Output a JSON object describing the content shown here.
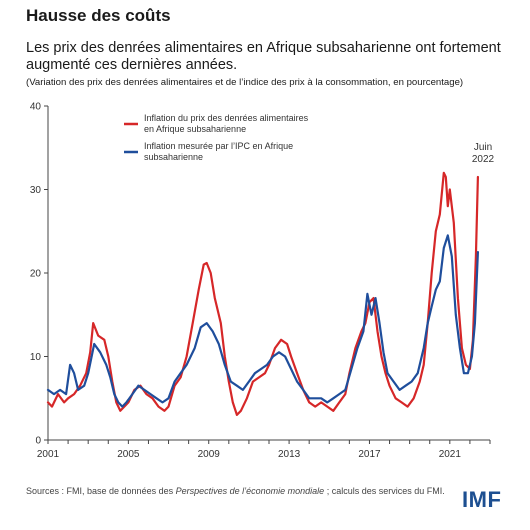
{
  "header": {
    "title": "Hausse des coûts",
    "subtitle": "Les prix des denrées alimentaires en Afrique subsaharienne ont fortement augmenté ces dernières années.",
    "note": "(Variation des prix des denrées alimentaires et de l’indice des prix à la consommation, en pourcentage)"
  },
  "footer": {
    "source_prefix": "Sources : FMI, base de données des ",
    "source_italic": "Perspectives de l’économie mondiale",
    "source_suffix": " ; calculs des services du FMI.",
    "logo": "IMF"
  },
  "colors": {
    "food": "#d62728",
    "cpi": "#1f4e9c",
    "axis": "#444444"
  },
  "chart_data": {
    "type": "line",
    "x_range": [
      2001,
      2023
    ],
    "ylim": [
      0,
      40
    ],
    "y_ticks": [
      "0",
      "10",
      "20",
      "30",
      "40"
    ],
    "x_ticks": [
      "2001",
      "2005",
      "2009",
      "2013",
      "2017",
      "2021"
    ],
    "legend_position": "top-center",
    "annotation": [
      "Juin",
      "2022"
    ],
    "series": [
      {
        "name": "Inflation du prix des denrées alimentaires en Afrique subsaharienne",
        "legend_lines": [
          "Inflation du prix des denrées alimentaires",
          "en Afrique subsaharienne"
        ],
        "color": "#d62728",
        "points": [
          [
            2001.0,
            4.5
          ],
          [
            2001.2,
            4.0
          ],
          [
            2001.5,
            5.5
          ],
          [
            2001.8,
            4.5
          ],
          [
            2002.0,
            5.0
          ],
          [
            2002.3,
            5.5
          ],
          [
            2002.6,
            6.5
          ],
          [
            2002.9,
            8.0
          ],
          [
            2003.1,
            10.5
          ],
          [
            2003.25,
            14.0
          ],
          [
            2003.5,
            12.5
          ],
          [
            2003.8,
            12.0
          ],
          [
            2004.0,
            10.0
          ],
          [
            2004.2,
            7.0
          ],
          [
            2004.4,
            4.5
          ],
          [
            2004.6,
            3.5
          ],
          [
            2004.8,
            4.0
          ],
          [
            2005.0,
            4.5
          ],
          [
            2005.3,
            6.0
          ],
          [
            2005.6,
            6.5
          ],
          [
            2005.9,
            5.5
          ],
          [
            2006.2,
            5.0
          ],
          [
            2006.5,
            4.0
          ],
          [
            2006.8,
            3.5
          ],
          [
            2007.0,
            4.0
          ],
          [
            2007.3,
            6.5
          ],
          [
            2007.6,
            7.5
          ],
          [
            2007.9,
            10.0
          ],
          [
            2008.2,
            14.0
          ],
          [
            2008.5,
            18.0
          ],
          [
            2008.75,
            21.0
          ],
          [
            2008.9,
            21.2
          ],
          [
            2009.1,
            20.0
          ],
          [
            2009.3,
            17.0
          ],
          [
            2009.6,
            14.0
          ],
          [
            2009.8,
            10.0
          ],
          [
            2010.0,
            7.0
          ],
          [
            2010.2,
            4.5
          ],
          [
            2010.4,
            3.0
          ],
          [
            2010.6,
            3.5
          ],
          [
            2010.9,
            5.0
          ],
          [
            2011.2,
            7.0
          ],
          [
            2011.5,
            7.5
          ],
          [
            2011.8,
            8.0
          ],
          [
            2012.0,
            9.0
          ],
          [
            2012.3,
            11.0
          ],
          [
            2012.6,
            12.0
          ],
          [
            2012.9,
            11.5
          ],
          [
            2013.1,
            10.0
          ],
          [
            2013.4,
            8.0
          ],
          [
            2013.7,
            6.0
          ],
          [
            2014.0,
            4.5
          ],
          [
            2014.3,
            4.0
          ],
          [
            2014.6,
            4.5
          ],
          [
            2014.9,
            4.0
          ],
          [
            2015.2,
            3.5
          ],
          [
            2015.5,
            4.5
          ],
          [
            2015.8,
            5.5
          ],
          [
            2016.0,
            8.0
          ],
          [
            2016.3,
            11.0
          ],
          [
            2016.6,
            13.0
          ],
          [
            2016.8,
            14.0
          ],
          [
            2017.0,
            16.5
          ],
          [
            2017.2,
            17.0
          ],
          [
            2017.4,
            13.0
          ],
          [
            2017.6,
            10.0
          ],
          [
            2017.8,
            8.0
          ],
          [
            2018.0,
            6.5
          ],
          [
            2018.3,
            5.0
          ],
          [
            2018.6,
            4.5
          ],
          [
            2018.9,
            4.0
          ],
          [
            2019.2,
            5.0
          ],
          [
            2019.5,
            7.0
          ],
          [
            2019.7,
            9.0
          ],
          [
            2019.9,
            14.0
          ],
          [
            2020.1,
            20.0
          ],
          [
            2020.3,
            25.0
          ],
          [
            2020.5,
            27.0
          ],
          [
            2020.7,
            32.0
          ],
          [
            2020.8,
            31.5
          ],
          [
            2020.9,
            28.0
          ],
          [
            2021.0,
            30.0
          ],
          [
            2021.2,
            26.0
          ],
          [
            2021.4,
            17.0
          ],
          [
            2021.6,
            11.0
          ],
          [
            2021.8,
            9.0
          ],
          [
            2022.0,
            8.5
          ],
          [
            2022.15,
            12.0
          ],
          [
            2022.3,
            22.0
          ],
          [
            2022.4,
            31.5
          ]
        ]
      },
      {
        "name": "Inflation mesurée par l’IPC en Afrique subsaharienne",
        "legend_lines": [
          "Inflation mesurée par l’IPC en Afrique",
          "subsaharienne"
        ],
        "color": "#1f4e9c",
        "points": [
          [
            2001.0,
            6.0
          ],
          [
            2001.3,
            5.5
          ],
          [
            2001.6,
            6.0
          ],
          [
            2001.9,
            5.5
          ],
          [
            2002.1,
            9.0
          ],
          [
            2002.3,
            8.0
          ],
          [
            2002.5,
            6.0
          ],
          [
            2002.8,
            6.5
          ],
          [
            2003.0,
            8.0
          ],
          [
            2003.3,
            11.5
          ],
          [
            2003.6,
            10.5
          ],
          [
            2003.9,
            9.0
          ],
          [
            2004.1,
            7.5
          ],
          [
            2004.3,
            5.5
          ],
          [
            2004.5,
            4.5
          ],
          [
            2004.7,
            4.0
          ],
          [
            2004.9,
            4.5
          ],
          [
            2005.2,
            5.5
          ],
          [
            2005.5,
            6.5
          ],
          [
            2005.8,
            6.0
          ],
          [
            2006.1,
            5.5
          ],
          [
            2006.4,
            5.0
          ],
          [
            2006.7,
            4.5
          ],
          [
            2007.0,
            5.0
          ],
          [
            2007.3,
            7.0
          ],
          [
            2007.6,
            8.0
          ],
          [
            2007.9,
            9.0
          ],
          [
            2008.3,
            11.0
          ],
          [
            2008.6,
            13.5
          ],
          [
            2008.9,
            14.0
          ],
          [
            2009.2,
            13.0
          ],
          [
            2009.5,
            11.5
          ],
          [
            2009.8,
            9.0
          ],
          [
            2010.1,
            7.0
          ],
          [
            2010.4,
            6.5
          ],
          [
            2010.7,
            6.0
          ],
          [
            2011.0,
            7.0
          ],
          [
            2011.3,
            8.0
          ],
          [
            2011.6,
            8.5
          ],
          [
            2011.9,
            9.0
          ],
          [
            2012.2,
            10.0
          ],
          [
            2012.5,
            10.5
          ],
          [
            2012.8,
            10.0
          ],
          [
            2013.1,
            8.5
          ],
          [
            2013.4,
            7.0
          ],
          [
            2013.7,
            6.0
          ],
          [
            2014.0,
            5.0
          ],
          [
            2014.3,
            5.0
          ],
          [
            2014.6,
            5.0
          ],
          [
            2014.9,
            4.5
          ],
          [
            2015.2,
            5.0
          ],
          [
            2015.5,
            5.5
          ],
          [
            2015.8,
            6.0
          ],
          [
            2016.1,
            8.5
          ],
          [
            2016.4,
            11.0
          ],
          [
            2016.7,
            13.0
          ],
          [
            2016.9,
            17.5
          ],
          [
            2017.1,
            15.0
          ],
          [
            2017.3,
            17.0
          ],
          [
            2017.5,
            14.0
          ],
          [
            2017.7,
            10.5
          ],
          [
            2017.9,
            8.0
          ],
          [
            2018.2,
            7.0
          ],
          [
            2018.5,
            6.0
          ],
          [
            2018.8,
            6.5
          ],
          [
            2019.1,
            7.0
          ],
          [
            2019.4,
            8.0
          ],
          [
            2019.7,
            11.0
          ],
          [
            2019.9,
            14.0
          ],
          [
            2020.1,
            16.0
          ],
          [
            2020.3,
            18.0
          ],
          [
            2020.5,
            19.0
          ],
          [
            2020.7,
            23.0
          ],
          [
            2020.9,
            24.5
          ],
          [
            2021.1,
            22.0
          ],
          [
            2021.3,
            15.0
          ],
          [
            2021.5,
            11.0
          ],
          [
            2021.7,
            8.0
          ],
          [
            2021.9,
            8.0
          ],
          [
            2022.1,
            10.0
          ],
          [
            2022.25,
            14.0
          ],
          [
            2022.4,
            22.5
          ]
        ]
      }
    ]
  }
}
